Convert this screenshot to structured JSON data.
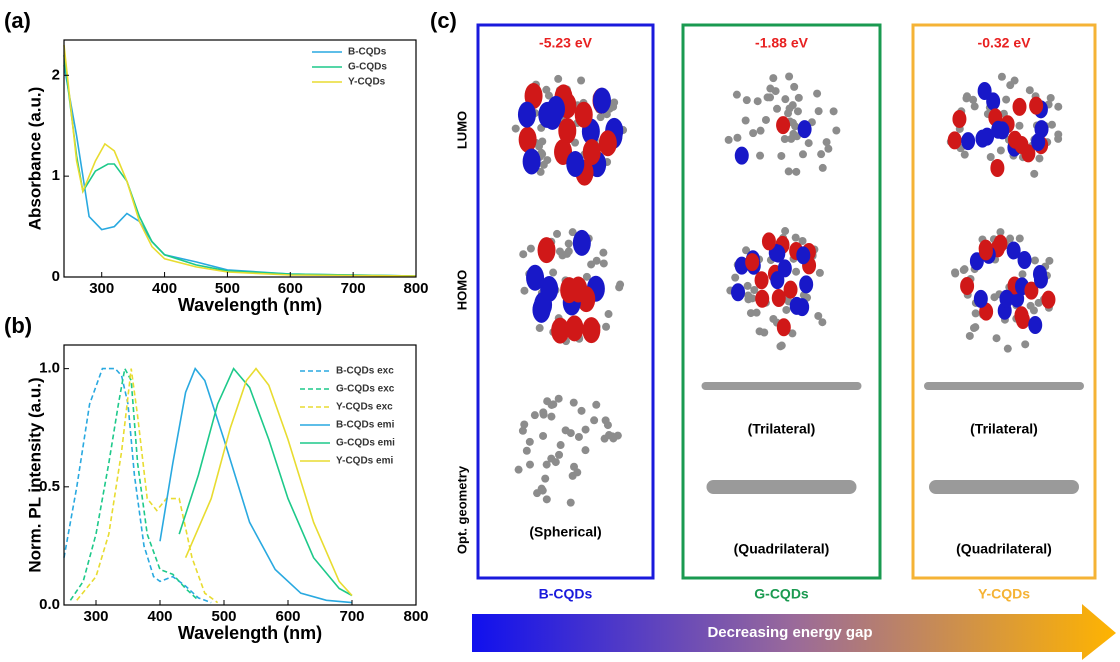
{
  "chart_data": [
    {
      "type": "line",
      "panel_label": "(a)",
      "x_label": "Wavelength (nm)",
      "y_label": "Absorbance (a.u.)",
      "xlim": [
        240,
        800
      ],
      "ylim": [
        0,
        2.35
      ],
      "xticks": [
        300,
        400,
        500,
        600,
        700,
        800
      ],
      "yticks": [
        0,
        1,
        2
      ],
      "series": [
        {
          "name": "B-CQDs",
          "color": "#29a9e0",
          "dashed": false,
          "x": [
            240,
            260,
            270,
            280,
            300,
            320,
            340,
            360,
            380,
            400,
            450,
            500,
            600,
            700,
            800
          ],
          "values": [
            2.1,
            1.4,
            1.0,
            0.6,
            0.47,
            0.5,
            0.63,
            0.55,
            0.35,
            0.22,
            0.15,
            0.07,
            0.03,
            0.02,
            0.01
          ]
        },
        {
          "name": "G-CQDs",
          "color": "#1dc98a",
          "dashed": false,
          "x": [
            240,
            260,
            270,
            290,
            310,
            320,
            340,
            360,
            380,
            400,
            450,
            500,
            600,
            700,
            800
          ],
          "values": [
            2.2,
            1.2,
            0.85,
            1.05,
            1.12,
            1.12,
            0.95,
            0.6,
            0.35,
            0.22,
            0.12,
            0.06,
            0.03,
            0.02,
            0.01
          ]
        },
        {
          "name": "Y-CQDs",
          "color": "#e8dc30",
          "dashed": false,
          "x": [
            240,
            260,
            270,
            290,
            305,
            320,
            340,
            360,
            380,
            400,
            450,
            500,
            600,
            700,
            800
          ],
          "values": [
            2.3,
            1.15,
            0.85,
            1.15,
            1.32,
            1.25,
            0.95,
            0.55,
            0.3,
            0.18,
            0.1,
            0.05,
            0.02,
            0.015,
            0.01
          ]
        }
      ]
    },
    {
      "type": "line",
      "panel_label": "(b)",
      "x_label": "Wavelength (nm)",
      "y_label": "Norm. PL intensity (a.u.)",
      "xlim": [
        250,
        800
      ],
      "ylim": [
        0,
        1.1
      ],
      "xticks": [
        300,
        400,
        500,
        600,
        700,
        800
      ],
      "yticks": [
        {
          "value": 0,
          "label": "0.0"
        },
        0.5,
        {
          "value": 1,
          "label": "1.0"
        }
      ],
      "series": [
        {
          "name": "B-CQDs exc",
          "color": "#29a9e0",
          "dashed": true,
          "x": [
            250,
            270,
            290,
            310,
            330,
            340,
            350,
            360,
            375,
            390,
            400,
            420,
            440,
            460,
            480
          ],
          "values": [
            0.2,
            0.5,
            0.85,
            1.0,
            1.0,
            0.97,
            0.85,
            0.55,
            0.25,
            0.12,
            0.1,
            0.12,
            0.08,
            0.03,
            0.01
          ]
        },
        {
          "name": "G-CQDs exc",
          "color": "#1dc98a",
          "dashed": true,
          "x": [
            260,
            280,
            300,
            320,
            335,
            345,
            355,
            365,
            380,
            400,
            420,
            440,
            460
          ],
          "values": [
            0.02,
            0.1,
            0.3,
            0.6,
            0.85,
            1.0,
            0.95,
            0.6,
            0.3,
            0.15,
            0.13,
            0.07,
            0.02
          ]
        },
        {
          "name": "Y-CQDs exc",
          "color": "#e8dc30",
          "dashed": true,
          "x": [
            270,
            300,
            320,
            340,
            355,
            365,
            380,
            395,
            410,
            430,
            450,
            470,
            490
          ],
          "values": [
            0.02,
            0.12,
            0.3,
            0.65,
            1.0,
            0.8,
            0.45,
            0.4,
            0.45,
            0.45,
            0.2,
            0.05,
            0.01
          ]
        },
        {
          "name": "B-CQDs emi",
          "color": "#29a9e0",
          "dashed": false,
          "x": [
            400,
            420,
            440,
            455,
            470,
            500,
            540,
            580,
            620,
            660,
            700
          ],
          "values": [
            0.27,
            0.6,
            0.9,
            1.0,
            0.95,
            0.7,
            0.35,
            0.15,
            0.05,
            0.02,
            0.01
          ]
        },
        {
          "name": "G-CQDs emi",
          "color": "#1dc98a",
          "dashed": false,
          "x": [
            430,
            460,
            490,
            515,
            540,
            570,
            600,
            640,
            680,
            700
          ],
          "values": [
            0.3,
            0.55,
            0.85,
            1.0,
            0.92,
            0.7,
            0.45,
            0.2,
            0.07,
            0.04
          ]
        },
        {
          "name": "Y-CQDs emi",
          "color": "#e8dc30",
          "dashed": false,
          "x": [
            440,
            480,
            510,
            535,
            550,
            570,
            600,
            640,
            680,
            700
          ],
          "values": [
            0.2,
            0.45,
            0.75,
            0.95,
            1.0,
            0.93,
            0.7,
            0.35,
            0.1,
            0.04
          ]
        }
      ]
    }
  ],
  "panel_c": {
    "panel_label": "(c)",
    "row_labels": [
      "LUMO",
      "HOMO",
      "Opt. geometry"
    ],
    "columns": [
      {
        "name": "B-CQDs",
        "energy": "-5.23 eV",
        "color": "#1a1adc",
        "captions": [
          "(Spherical)"
        ]
      },
      {
        "name": "G-CQDs",
        "energy": "-1.88 eV",
        "color": "#1a9a50",
        "captions": [
          "(Trilateral)",
          "(Quadrilateral)"
        ]
      },
      {
        "name": "Y-CQDs",
        "energy": "-0.32 eV",
        "color": "#f5b335",
        "captions": [
          "(Trilateral)",
          "(Quadrilateral)"
        ]
      }
    ],
    "arrow_label": "Decreasing energy gap"
  }
}
